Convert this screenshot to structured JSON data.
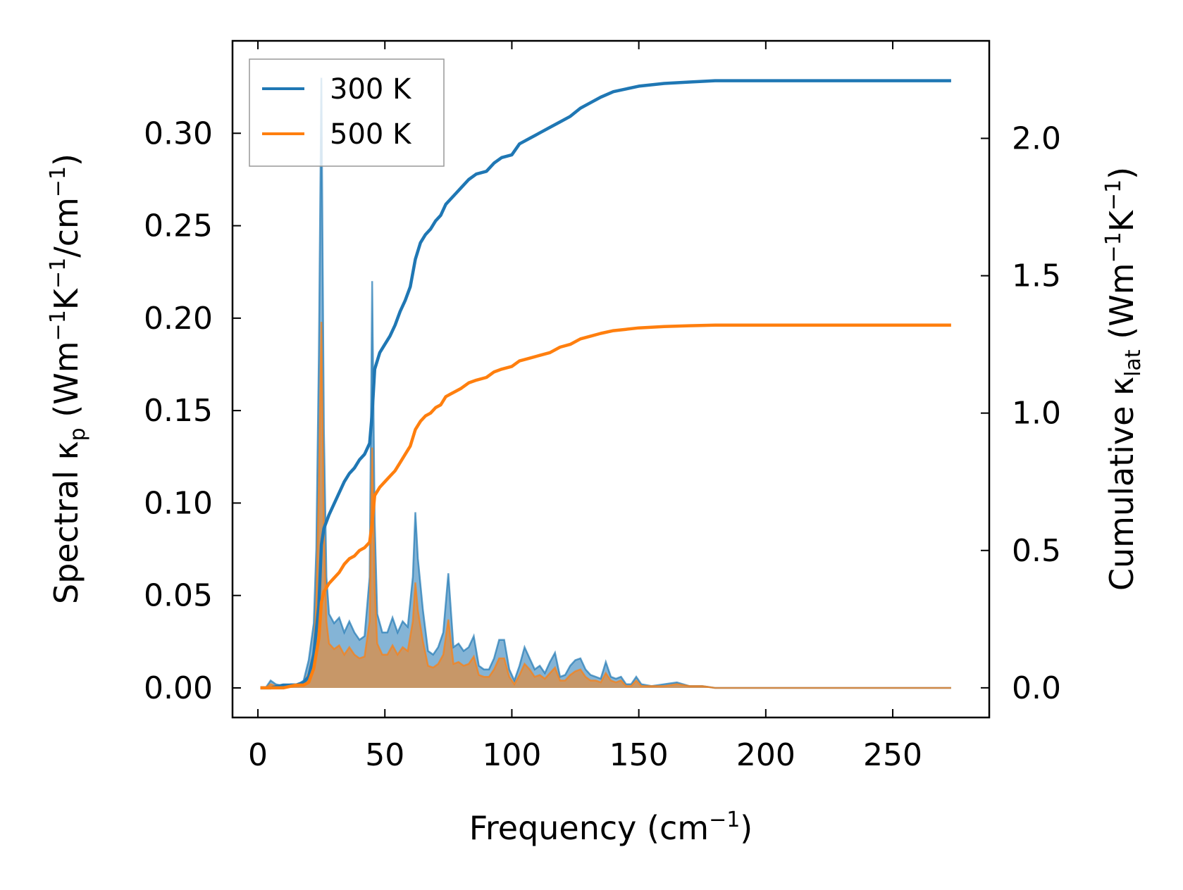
{
  "chart_data": {
    "type": "line",
    "xlabel": {
      "base": "Frequency (cm",
      "sup": "−1",
      "tail": ")"
    },
    "ylabel_left": {
      "a": "Spectral κ",
      "a_sub": "p",
      "b": " (Wm",
      "b_sup": "−1",
      "c": "K",
      "c_sup": "−1",
      "d": "/cm",
      "d_sup": "−1",
      "e": ")"
    },
    "ylabel_right": {
      "a": "Cumulative κ",
      "a_sub": "lat",
      "b": " (Wm",
      "b_sup": "−1",
      "c": "K",
      "c_sup": "−1",
      "e": ")"
    },
    "xlim": [
      -10,
      288
    ],
    "ylim_left": [
      -0.016,
      0.35
    ],
    "ylim_right": [
      -0.108,
      2.355
    ],
    "x_ticks": [
      0,
      50,
      100,
      150,
      200,
      250
    ],
    "x_tick_labels": [
      "0",
      "50",
      "100",
      "150",
      "200",
      "250"
    ],
    "y_left_ticks": [
      0.0,
      0.05,
      0.1,
      0.15,
      0.2,
      0.25,
      0.3
    ],
    "y_left_tick_labels": [
      "0.00",
      "0.05",
      "0.10",
      "0.15",
      "0.20",
      "0.25",
      "0.30"
    ],
    "y_right_ticks": [
      0.0,
      0.5,
      1.0,
      1.5,
      2.0
    ],
    "y_right_tick_labels": [
      "0.0",
      "0.5",
      "1.0",
      "1.5",
      "2.0"
    ],
    "legend": {
      "placement": "top-left",
      "entries": [
        "300 K",
        "500 K"
      ]
    },
    "colors": {
      "300 K": "#1f77b4",
      "500 K": "#ff7f0e"
    },
    "series": [
      {
        "name": "300 K",
        "spectral": {
          "x": [
            1,
            3,
            5,
            7,
            10,
            13,
            16,
            18,
            20,
            22,
            23,
            24,
            25,
            26,
            27,
            28,
            30,
            32,
            34,
            36,
            38,
            40,
            42,
            44,
            45,
            46,
            47,
            49,
            51,
            53,
            55,
            57,
            59,
            61,
            62,
            63,
            65,
            67,
            69,
            71,
            73,
            75,
            77,
            79,
            81,
            83,
            85,
            87,
            89,
            91,
            93,
            95,
            97,
            99,
            101,
            103,
            105,
            107,
            109,
            111,
            113,
            115,
            117,
            119,
            121,
            123,
            125,
            127,
            129,
            131,
            133,
            135,
            137,
            139,
            141,
            143,
            145,
            147,
            149,
            151,
            155,
            160,
            165,
            170,
            175,
            180,
            190,
            200,
            220,
            240,
            260,
            273
          ],
          "y": [
            0.0,
            0.0,
            0.004,
            0.002,
            0.001,
            0.002,
            0.002,
            0.004,
            0.015,
            0.035,
            0.075,
            0.18,
            0.33,
            0.14,
            0.06,
            0.04,
            0.035,
            0.038,
            0.03,
            0.036,
            0.03,
            0.026,
            0.028,
            0.06,
            0.22,
            0.09,
            0.04,
            0.03,
            0.03,
            0.038,
            0.03,
            0.036,
            0.033,
            0.06,
            0.095,
            0.07,
            0.042,
            0.02,
            0.018,
            0.022,
            0.03,
            0.062,
            0.022,
            0.024,
            0.02,
            0.022,
            0.028,
            0.012,
            0.01,
            0.01,
            0.016,
            0.026,
            0.026,
            0.01,
            0.004,
            0.012,
            0.022,
            0.016,
            0.01,
            0.012,
            0.008,
            0.014,
            0.019,
            0.006,
            0.007,
            0.012,
            0.015,
            0.016,
            0.01,
            0.007,
            0.006,
            0.005,
            0.014,
            0.006,
            0.005,
            0.006,
            0.002,
            0.002,
            0.006,
            0.002,
            0.001,
            0.002,
            0.003,
            0.001,
            0.001,
            0.0,
            0.0,
            0.0,
            0.0,
            0.0,
            0.0,
            0.0
          ]
        },
        "cumulative": {
          "x": [
            1,
            5,
            10,
            15,
            18,
            20,
            22,
            24,
            25,
            26,
            28,
            30,
            32,
            34,
            36,
            38,
            40,
            42,
            44,
            45,
            46,
            48,
            50,
            52,
            54,
            56,
            58,
            60,
            62,
            64,
            66,
            68,
            70,
            72,
            74,
            76,
            78,
            80,
            83,
            86,
            90,
            93,
            96,
            100,
            103,
            107,
            111,
            115,
            119,
            123,
            127,
            131,
            135,
            140,
            145,
            150,
            160,
            170,
            180,
            200,
            240,
            273
          ],
          "y": [
            0.0,
            0.0,
            0.01,
            0.01,
            0.02,
            0.04,
            0.12,
            0.3,
            0.52,
            0.58,
            0.63,
            0.67,
            0.71,
            0.75,
            0.78,
            0.8,
            0.83,
            0.85,
            0.89,
            1.0,
            1.16,
            1.22,
            1.25,
            1.28,
            1.32,
            1.37,
            1.41,
            1.46,
            1.56,
            1.62,
            1.65,
            1.67,
            1.7,
            1.72,
            1.76,
            1.78,
            1.8,
            1.82,
            1.85,
            1.87,
            1.88,
            1.91,
            1.93,
            1.94,
            1.98,
            2.0,
            2.02,
            2.04,
            2.06,
            2.08,
            2.11,
            2.13,
            2.15,
            2.17,
            2.18,
            2.19,
            2.2,
            2.205,
            2.21,
            2.21,
            2.21,
            2.21
          ]
        }
      },
      {
        "name": "500 K",
        "spectral": {
          "x": [
            1,
            3,
            5,
            7,
            10,
            13,
            16,
            18,
            20,
            22,
            23,
            24,
            25,
            26,
            27,
            28,
            30,
            32,
            34,
            36,
            38,
            40,
            42,
            44,
            45,
            46,
            47,
            49,
            51,
            53,
            55,
            57,
            59,
            61,
            62,
            63,
            65,
            67,
            69,
            71,
            73,
            75,
            77,
            79,
            81,
            83,
            85,
            87,
            89,
            91,
            93,
            95,
            97,
            99,
            101,
            103,
            105,
            107,
            109,
            111,
            113,
            115,
            117,
            119,
            121,
            123,
            125,
            127,
            129,
            131,
            133,
            135,
            137,
            139,
            141,
            143,
            145,
            147,
            149,
            151,
            155,
            160,
            165,
            170,
            175,
            180,
            190,
            200,
            220,
            240,
            260,
            273
          ],
          "y": [
            0.0,
            0.0,
            0.002,
            0.001,
            0.001,
            0.001,
            0.001,
            0.002,
            0.008,
            0.02,
            0.045,
            0.11,
            0.198,
            0.085,
            0.036,
            0.024,
            0.021,
            0.023,
            0.018,
            0.022,
            0.018,
            0.016,
            0.017,
            0.036,
            0.13,
            0.054,
            0.024,
            0.018,
            0.018,
            0.023,
            0.018,
            0.022,
            0.02,
            0.036,
            0.057,
            0.042,
            0.025,
            0.012,
            0.011,
            0.013,
            0.018,
            0.037,
            0.013,
            0.014,
            0.012,
            0.013,
            0.017,
            0.007,
            0.006,
            0.006,
            0.01,
            0.016,
            0.016,
            0.006,
            0.002,
            0.007,
            0.013,
            0.01,
            0.006,
            0.007,
            0.005,
            0.008,
            0.011,
            0.004,
            0.004,
            0.007,
            0.009,
            0.01,
            0.006,
            0.004,
            0.004,
            0.003,
            0.008,
            0.004,
            0.003,
            0.004,
            0.001,
            0.001,
            0.004,
            0.001,
            0.001,
            0.001,
            0.002,
            0.001,
            0.001,
            0.0,
            0.0,
            0.0,
            0.0,
            0.0,
            0.0,
            0.0
          ]
        },
        "cumulative": {
          "x": [
            1,
            5,
            10,
            15,
            18,
            20,
            22,
            24,
            25,
            26,
            28,
            30,
            32,
            34,
            36,
            38,
            40,
            42,
            44,
            45,
            46,
            48,
            50,
            52,
            54,
            56,
            58,
            60,
            62,
            64,
            66,
            68,
            70,
            72,
            74,
            76,
            78,
            80,
            83,
            86,
            90,
            93,
            96,
            100,
            103,
            107,
            111,
            115,
            119,
            123,
            127,
            131,
            135,
            140,
            145,
            150,
            160,
            170,
            180,
            200,
            240,
            273
          ],
          "y": [
            0.0,
            0.0,
            0.0,
            0.01,
            0.01,
            0.02,
            0.07,
            0.18,
            0.31,
            0.35,
            0.38,
            0.4,
            0.42,
            0.45,
            0.47,
            0.48,
            0.5,
            0.51,
            0.53,
            0.6,
            0.7,
            0.73,
            0.75,
            0.77,
            0.79,
            0.82,
            0.85,
            0.88,
            0.94,
            0.97,
            0.99,
            1.0,
            1.02,
            1.03,
            1.06,
            1.07,
            1.08,
            1.09,
            1.11,
            1.12,
            1.13,
            1.15,
            1.16,
            1.17,
            1.19,
            1.2,
            1.21,
            1.22,
            1.24,
            1.25,
            1.27,
            1.28,
            1.29,
            1.3,
            1.305,
            1.31,
            1.315,
            1.318,
            1.32,
            1.32,
            1.32,
            1.32
          ]
        }
      }
    ]
  }
}
